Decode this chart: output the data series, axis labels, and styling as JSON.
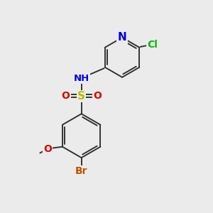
{
  "background_color": "#ebebeb",
  "figsize": [
    3.0,
    3.0
  ],
  "dpi": 100,
  "bond_color": "#333333",
  "bond_width": 1.4,
  "colors": {
    "N": "#0000ee",
    "S": "#bbbb00",
    "O": "#dd0000",
    "Br": "#bb5500",
    "Cl": "#00bb00",
    "C": "#333333"
  }
}
